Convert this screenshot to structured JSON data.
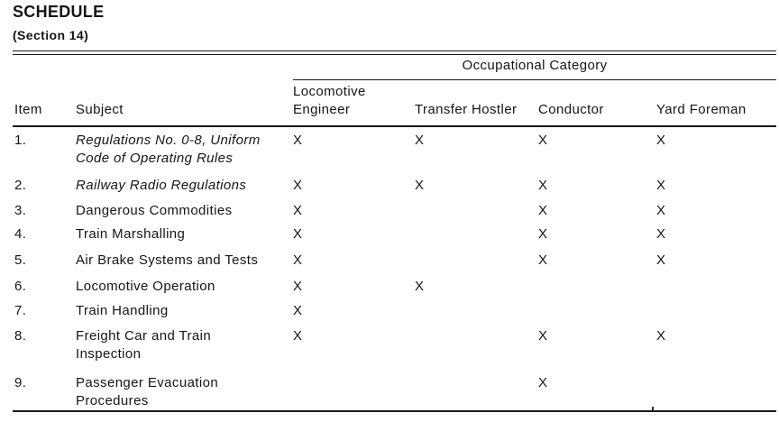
{
  "page": {
    "title": "SCHEDULE",
    "section": "(Section 14)"
  },
  "colors": {
    "ink": "#151515",
    "background": "#ffffff"
  },
  "table": {
    "category_header": "Occupational Category",
    "item_header": "Item",
    "subject_header": "Subject",
    "occupations": [
      {
        "label": "Locomotive Engineer",
        "lines": [
          "Locomotive",
          "Engineer"
        ]
      },
      {
        "label": "Transfer Hostler",
        "lines": [
          "Transfer Hostler"
        ]
      },
      {
        "label": "Conductor",
        "lines": [
          "Conductor"
        ]
      },
      {
        "label": "Yard Foreman",
        "lines": [
          "Yard Foreman"
        ]
      }
    ],
    "rows": [
      {
        "item": "1.",
        "subject": "Regulations No. 0-8, Uniform Code of Operating Rules",
        "subject_lines": [
          "Regulations No. 0-8, Uniform",
          "Code of Operating Rules"
        ],
        "italic": true,
        "marks": [
          "X",
          "X",
          "X",
          "X"
        ]
      },
      {
        "item": "2.",
        "subject": "Railway Radio Regulations",
        "subject_lines": [
          "Railway Radio Regulations"
        ],
        "italic": true,
        "marks": [
          "X",
          "X",
          "X",
          "X"
        ]
      },
      {
        "item": "3.",
        "subject": "Dangerous Commodities",
        "subject_lines": [
          "Dangerous Commodities"
        ],
        "italic": false,
        "marks": [
          "X",
          "",
          "X",
          "X"
        ]
      },
      {
        "item": "4.",
        "subject": "Train Marshalling",
        "subject_lines": [
          "Train Marshalling"
        ],
        "italic": false,
        "marks": [
          "X",
          "",
          "X",
          "X"
        ]
      },
      {
        "item": "5.",
        "subject": "Air Brake Systems and Tests",
        "subject_lines": [
          "Air Brake Systems and Tests"
        ],
        "italic": false,
        "marks": [
          "X",
          "",
          "X",
          "X"
        ]
      },
      {
        "item": "6.",
        "subject": "Locomotive Operation",
        "subject_lines": [
          "Locomotive Operation"
        ],
        "italic": false,
        "marks": [
          "X",
          "X",
          "",
          ""
        ]
      },
      {
        "item": "7.",
        "subject": "Train Handling",
        "subject_lines": [
          "Train Handling"
        ],
        "italic": false,
        "marks": [
          "X",
          "",
          "",
          ""
        ]
      },
      {
        "item": "8.",
        "subject": "Freight Car and Train Inspection",
        "subject_lines": [
          "Freight Car and Train",
          "Inspection"
        ],
        "italic": false,
        "marks": [
          "X",
          "",
          "X",
          "X"
        ]
      },
      {
        "item": "9.",
        "subject": "Passenger Evacuation Procedures",
        "subject_lines": [
          "Passenger Evacuation",
          "Procedures"
        ],
        "italic": false,
        "marks": [
          "",
          "",
          "X",
          ""
        ]
      }
    ]
  }
}
